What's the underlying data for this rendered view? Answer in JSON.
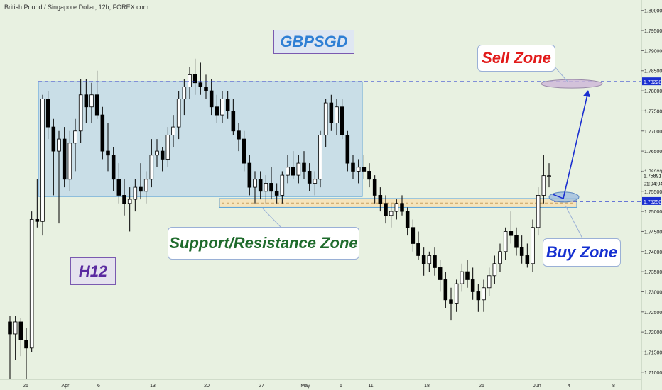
{
  "window": {
    "header": "British Pound / Singapore Dollar, 12h, FOREX.com"
  },
  "labels": {
    "symbol": "GBPSGD",
    "timeframe": "H12",
    "sell_zone": "Sell Zone",
    "buy_zone": "Buy Zone",
    "sr_zone": "Support/Resistance Zone"
  },
  "colors": {
    "background": "#e8f1e1",
    "up_candle": "#ffffff",
    "down_candle": "#000000",
    "range_box": "#c3dbe7",
    "sr_zone": "#f6e2b8",
    "sell_text": "#e21b1b",
    "buy_text": "#1530d1",
    "sr_text": "#1f6b2c",
    "symbol_text": "#2f7fd4",
    "timeframe_text": "#5a2aa0",
    "dashed_line": "#1a2fd0"
  },
  "price_tags": {
    "top_line": "1.78228",
    "current": "1.75891",
    "countdown": "01:04:04",
    "support_line": "1.75250"
  },
  "chart_data": {
    "type": "candlestick",
    "y_axis": {
      "ylim": [
        1.7082,
        1.8026
      ],
      "ticks": [
        "1.80000",
        "1.79500",
        "1.79000",
        "1.78500",
        "1.78000",
        "1.77500",
        "1.77000",
        "1.76500",
        "1.76000",
        "1.75500",
        "1.75000",
        "1.74500",
        "1.74000",
        "1.73500",
        "1.73000",
        "1.72500",
        "1.72000",
        "1.71500",
        "1.71000"
      ]
    },
    "x_axis": {
      "ticks": [
        "26",
        "Apr",
        "6",
        "13",
        "20",
        "27",
        "May",
        "6",
        "11",
        "18",
        "25",
        "Jun",
        "4",
        "8"
      ]
    },
    "levels": {
      "resistance_dashed": 1.78228,
      "support_dashed": 1.7525,
      "current_price": 1.75891
    },
    "range_box": {
      "top": 1.78228,
      "bottom": 1.7537
    },
    "support_resistance_zone": {
      "top": 1.7532,
      "bottom": 1.751
    },
    "candles": [
      {
        "o": 1.7225,
        "h": 1.724,
        "l": 1.708,
        "c": 1.7195
      },
      {
        "o": 1.7195,
        "h": 1.724,
        "l": 1.713,
        "c": 1.7225
      },
      {
        "o": 1.7225,
        "h": 1.7235,
        "l": 1.714,
        "c": 1.718
      },
      {
        "o": 1.718,
        "h": 1.721,
        "l": 1.708,
        "c": 1.716
      },
      {
        "o": 1.716,
        "h": 1.75,
        "l": 1.715,
        "c": 1.748
      },
      {
        "o": 1.748,
        "h": 1.758,
        "l": 1.746,
        "c": 1.7475
      },
      {
        "o": 1.7475,
        "h": 1.779,
        "l": 1.744,
        "c": 1.778
      },
      {
        "o": 1.778,
        "h": 1.78,
        "l": 1.768,
        "c": 1.771
      },
      {
        "o": 1.771,
        "h": 1.773,
        "l": 1.754,
        "c": 1.765
      },
      {
        "o": 1.765,
        "h": 1.77,
        "l": 1.747,
        "c": 1.768
      },
      {
        "o": 1.768,
        "h": 1.771,
        "l": 1.756,
        "c": 1.758
      },
      {
        "o": 1.758,
        "h": 1.77,
        "l": 1.755,
        "c": 1.767
      },
      {
        "o": 1.767,
        "h": 1.773,
        "l": 1.76,
        "c": 1.77
      },
      {
        "o": 1.77,
        "h": 1.783,
        "l": 1.767,
        "c": 1.779
      },
      {
        "o": 1.779,
        "h": 1.783,
        "l": 1.772,
        "c": 1.776
      },
      {
        "o": 1.776,
        "h": 1.782,
        "l": 1.772,
        "c": 1.779
      },
      {
        "o": 1.779,
        "h": 1.785,
        "l": 1.773,
        "c": 1.774
      },
      {
        "o": 1.774,
        "h": 1.776,
        "l": 1.763,
        "c": 1.765
      },
      {
        "o": 1.765,
        "h": 1.772,
        "l": 1.76,
        "c": 1.764
      },
      {
        "o": 1.764,
        "h": 1.766,
        "l": 1.755,
        "c": 1.758
      },
      {
        "o": 1.758,
        "h": 1.762,
        "l": 1.752,
        "c": 1.754
      },
      {
        "o": 1.754,
        "h": 1.758,
        "l": 1.749,
        "c": 1.752
      },
      {
        "o": 1.752,
        "h": 1.756,
        "l": 1.745,
        "c": 1.753
      },
      {
        "o": 1.753,
        "h": 1.758,
        "l": 1.75,
        "c": 1.756
      },
      {
        "o": 1.756,
        "h": 1.762,
        "l": 1.753,
        "c": 1.755
      },
      {
        "o": 1.755,
        "h": 1.76,
        "l": 1.752,
        "c": 1.758
      },
      {
        "o": 1.758,
        "h": 1.768,
        "l": 1.756,
        "c": 1.764
      },
      {
        "o": 1.764,
        "h": 1.768,
        "l": 1.761,
        "c": 1.765
      },
      {
        "o": 1.765,
        "h": 1.766,
        "l": 1.76,
        "c": 1.763
      },
      {
        "o": 1.763,
        "h": 1.771,
        "l": 1.761,
        "c": 1.769
      },
      {
        "o": 1.769,
        "h": 1.774,
        "l": 1.766,
        "c": 1.771
      },
      {
        "o": 1.771,
        "h": 1.78,
        "l": 1.768,
        "c": 1.778
      },
      {
        "o": 1.778,
        "h": 1.783,
        "l": 1.774,
        "c": 1.781
      },
      {
        "o": 1.781,
        "h": 1.786,
        "l": 1.778,
        "c": 1.784
      },
      {
        "o": 1.784,
        "h": 1.788,
        "l": 1.779,
        "c": 1.782
      },
      {
        "o": 1.782,
        "h": 1.787,
        "l": 1.779,
        "c": 1.781
      },
      {
        "o": 1.781,
        "h": 1.784,
        "l": 1.778,
        "c": 1.78
      },
      {
        "o": 1.78,
        "h": 1.783,
        "l": 1.774,
        "c": 1.776
      },
      {
        "o": 1.776,
        "h": 1.779,
        "l": 1.772,
        "c": 1.774
      },
      {
        "o": 1.774,
        "h": 1.78,
        "l": 1.772,
        "c": 1.778
      },
      {
        "o": 1.778,
        "h": 1.78,
        "l": 1.773,
        "c": 1.775
      },
      {
        "o": 1.775,
        "h": 1.778,
        "l": 1.769,
        "c": 1.77
      },
      {
        "o": 1.77,
        "h": 1.772,
        "l": 1.765,
        "c": 1.768
      },
      {
        "o": 1.768,
        "h": 1.77,
        "l": 1.76,
        "c": 1.762
      },
      {
        "o": 1.762,
        "h": 1.764,
        "l": 1.754,
        "c": 1.756
      },
      {
        "o": 1.756,
        "h": 1.76,
        "l": 1.752,
        "c": 1.758
      },
      {
        "o": 1.758,
        "h": 1.76,
        "l": 1.753,
        "c": 1.755
      },
      {
        "o": 1.755,
        "h": 1.759,
        "l": 1.752,
        "c": 1.757
      },
      {
        "o": 1.757,
        "h": 1.761,
        "l": 1.753,
        "c": 1.755
      },
      {
        "o": 1.755,
        "h": 1.757,
        "l": 1.752,
        "c": 1.754
      },
      {
        "o": 1.754,
        "h": 1.76,
        "l": 1.752,
        "c": 1.759
      },
      {
        "o": 1.759,
        "h": 1.764,
        "l": 1.757,
        "c": 1.761
      },
      {
        "o": 1.761,
        "h": 1.765,
        "l": 1.758,
        "c": 1.759
      },
      {
        "o": 1.759,
        "h": 1.764,
        "l": 1.757,
        "c": 1.762
      },
      {
        "o": 1.762,
        "h": 1.765,
        "l": 1.758,
        "c": 1.76
      },
      {
        "o": 1.76,
        "h": 1.762,
        "l": 1.755,
        "c": 1.757
      },
      {
        "o": 1.757,
        "h": 1.76,
        "l": 1.754,
        "c": 1.758
      },
      {
        "o": 1.758,
        "h": 1.77,
        "l": 1.756,
        "c": 1.769
      },
      {
        "o": 1.769,
        "h": 1.778,
        "l": 1.766,
        "c": 1.777
      },
      {
        "o": 1.777,
        "h": 1.779,
        "l": 1.77,
        "c": 1.772
      },
      {
        "o": 1.772,
        "h": 1.778,
        "l": 1.769,
        "c": 1.776
      },
      {
        "o": 1.776,
        "h": 1.778,
        "l": 1.768,
        "c": 1.769
      },
      {
        "o": 1.769,
        "h": 1.77,
        "l": 1.76,
        "c": 1.762
      },
      {
        "o": 1.762,
        "h": 1.764,
        "l": 1.758,
        "c": 1.76
      },
      {
        "o": 1.76,
        "h": 1.763,
        "l": 1.757,
        "c": 1.761
      },
      {
        "o": 1.761,
        "h": 1.764,
        "l": 1.758,
        "c": 1.76
      },
      {
        "o": 1.76,
        "h": 1.762,
        "l": 1.756,
        "c": 1.758
      },
      {
        "o": 1.758,
        "h": 1.759,
        "l": 1.752,
        "c": 1.754
      },
      {
        "o": 1.754,
        "h": 1.756,
        "l": 1.75,
        "c": 1.752
      },
      {
        "o": 1.752,
        "h": 1.754,
        "l": 1.747,
        "c": 1.749
      },
      {
        "o": 1.749,
        "h": 1.752,
        "l": 1.746,
        "c": 1.75
      },
      {
        "o": 1.75,
        "h": 1.753,
        "l": 1.748,
        "c": 1.752
      },
      {
        "o": 1.752,
        "h": 1.754,
        "l": 1.749,
        "c": 1.75
      },
      {
        "o": 1.75,
        "h": 1.751,
        "l": 1.744,
        "c": 1.746
      },
      {
        "o": 1.746,
        "h": 1.748,
        "l": 1.74,
        "c": 1.742
      },
      {
        "o": 1.742,
        "h": 1.745,
        "l": 1.738,
        "c": 1.739
      },
      {
        "o": 1.739,
        "h": 1.741,
        "l": 1.734,
        "c": 1.737
      },
      {
        "o": 1.737,
        "h": 1.74,
        "l": 1.735,
        "c": 1.739
      },
      {
        "o": 1.739,
        "h": 1.741,
        "l": 1.734,
        "c": 1.736
      },
      {
        "o": 1.736,
        "h": 1.738,
        "l": 1.73,
        "c": 1.733
      },
      {
        "o": 1.733,
        "h": 1.735,
        "l": 1.726,
        "c": 1.728
      },
      {
        "o": 1.728,
        "h": 1.731,
        "l": 1.723,
        "c": 1.727
      },
      {
        "o": 1.727,
        "h": 1.733,
        "l": 1.725,
        "c": 1.732
      },
      {
        "o": 1.732,
        "h": 1.737,
        "l": 1.73,
        "c": 1.735
      },
      {
        "o": 1.735,
        "h": 1.738,
        "l": 1.731,
        "c": 1.733
      },
      {
        "o": 1.733,
        "h": 1.736,
        "l": 1.728,
        "c": 1.73
      },
      {
        "o": 1.73,
        "h": 1.732,
        "l": 1.725,
        "c": 1.728
      },
      {
        "o": 1.728,
        "h": 1.733,
        "l": 1.725,
        "c": 1.731
      },
      {
        "o": 1.731,
        "h": 1.736,
        "l": 1.729,
        "c": 1.734
      },
      {
        "o": 1.734,
        "h": 1.739,
        "l": 1.732,
        "c": 1.737
      },
      {
        "o": 1.737,
        "h": 1.742,
        "l": 1.735,
        "c": 1.74
      },
      {
        "o": 1.74,
        "h": 1.746,
        "l": 1.738,
        "c": 1.745
      },
      {
        "o": 1.745,
        "h": 1.75,
        "l": 1.742,
        "c": 1.744
      },
      {
        "o": 1.744,
        "h": 1.746,
        "l": 1.739,
        "c": 1.741
      },
      {
        "o": 1.741,
        "h": 1.744,
        "l": 1.737,
        "c": 1.739
      },
      {
        "o": 1.739,
        "h": 1.742,
        "l": 1.736,
        "c": 1.737
      },
      {
        "o": 1.737,
        "h": 1.748,
        "l": 1.735,
        "c": 1.746
      },
      {
        "o": 1.746,
        "h": 1.756,
        "l": 1.744,
        "c": 1.754
      },
      {
        "o": 1.754,
        "h": 1.764,
        "l": 1.752,
        "c": 1.7589
      },
      {
        "o": 1.7589,
        "h": 1.762,
        "l": 1.756,
        "c": 1.7589
      }
    ]
  }
}
